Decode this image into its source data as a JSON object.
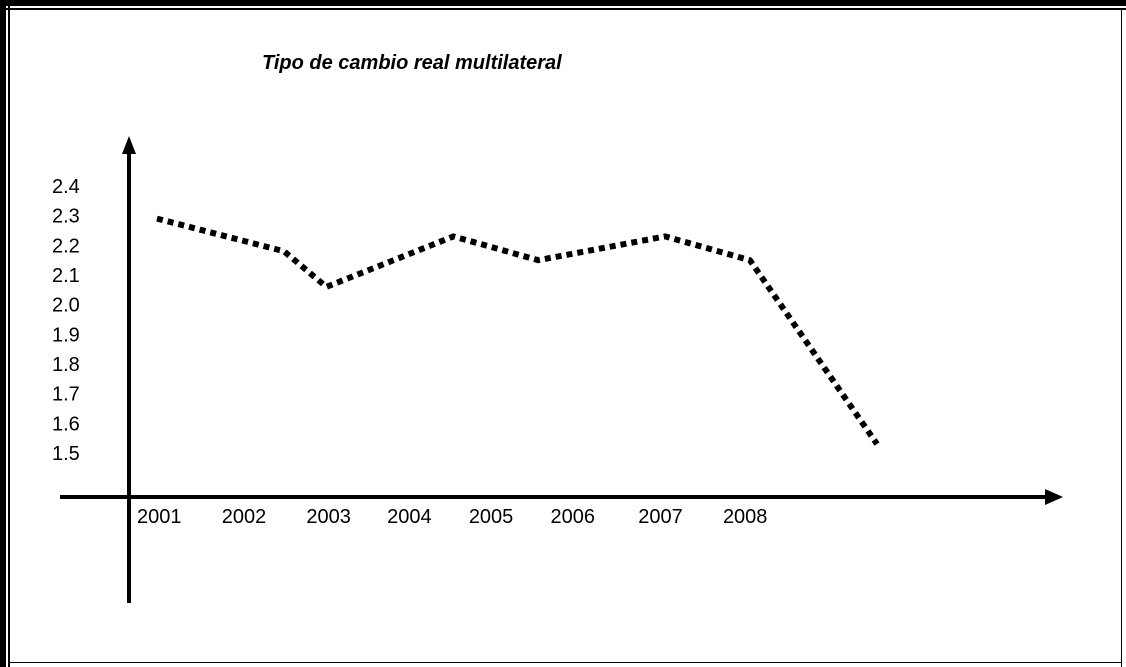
{
  "chart_data": {
    "type": "line",
    "title": "Tipo de cambio real multilateral",
    "xlabel": "",
    "ylabel": "",
    "y_tick_labels": [
      "2.4",
      "2.3",
      "2.2",
      "2.1",
      "2.0",
      "1.9",
      "1.8",
      "1.7",
      "1.6",
      "1.5"
    ],
    "x_tick_labels": [
      "2001",
      "2002",
      "2003",
      "2004",
      "2005",
      "2006",
      "2007",
      "2008"
    ],
    "ylim": [
      1.5,
      2.4
    ],
    "x": [
      2001,
      2002.5,
      2003,
      2004.5,
      2005.5,
      2007,
      2008,
      2009.5
    ],
    "series": [
      {
        "values": [
          2.29,
          2.18,
          2.06,
          2.23,
          2.15,
          2.23,
          2.15,
          1.53
        ],
        "color": "#000000",
        "line_style": "dotted"
      }
    ],
    "grid": false,
    "legend": "none"
  }
}
